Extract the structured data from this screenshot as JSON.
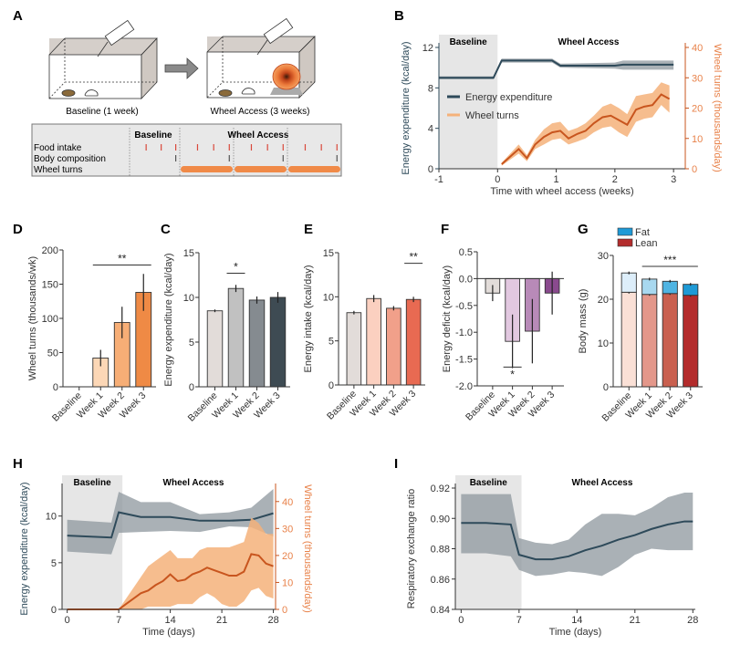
{
  "panel_letters": {
    "A": "A",
    "B": "B",
    "C": "C",
    "D": "D",
    "E": "E",
    "F": "F",
    "G": "G",
    "H": "H",
    "I": "I"
  },
  "colors": {
    "ee_line": "#2e4a5a",
    "ee_band": "#8e979e",
    "wheel_line": "#c8551e",
    "wheel_band": "#f5b27a",
    "wheel_axis": "#e8824a",
    "baseline_shade": "#e6e6e6",
    "food_tick": "#d9483b",
    "body_tick": "#555555",
    "wheel_bar": "#f08a48"
  },
  "panel_a": {
    "cage1_label": "Baseline (1 week)",
    "cage2_label": "Wheel Access (3 weeks)",
    "schedule": {
      "header_baseline": "Baseline",
      "header_wheel": "Wheel Access",
      "rows": [
        "Food intake",
        "Body composition",
        "Wheel turns"
      ]
    }
  },
  "chart_data": [
    {
      "id": "B",
      "type": "line",
      "title": "",
      "region_labels": [
        "Baseline",
        "Wheel Access"
      ],
      "xlabel": "Time with wheel access (weeks)",
      "ylabel": "Energy expenditure (kcal/day)",
      "y2label": "Wheel turns (thousands/day)",
      "xlim": [
        -1,
        3.2
      ],
      "ylim": [
        0,
        12
      ],
      "y2lim": [
        0,
        40
      ],
      "xticks": [
        -1,
        0,
        1,
        2,
        3
      ],
      "yticks": [
        0,
        4,
        8,
        12
      ],
      "y2ticks": [
        0,
        10,
        20,
        30,
        40
      ],
      "legend": [
        "Energy expenditure",
        "Wheel turns"
      ],
      "legend_position": "center-left",
      "series": [
        {
          "name": "Energy expenditure",
          "axis": "left",
          "x": [
            -1,
            -0.07,
            0.07,
            0.93,
            1.07,
            2.0,
            2.14,
            3.0
          ],
          "y": [
            9.0,
            9.0,
            10.7,
            10.7,
            10.2,
            10.2,
            10.3,
            10.3
          ],
          "lower": [
            8.85,
            8.85,
            10.5,
            10.5,
            10.0,
            9.9,
            9.8,
            9.8
          ],
          "upper": [
            9.15,
            9.15,
            10.9,
            10.9,
            10.4,
            10.5,
            10.7,
            10.7
          ]
        },
        {
          "name": "Wheel turns",
          "axis": "right",
          "x": [
            0.07,
            0.36,
            0.5,
            0.64,
            0.79,
            0.93,
            1.07,
            1.21,
            1.36,
            1.5,
            1.64,
            1.79,
            1.93,
            2.07,
            2.21,
            2.36,
            2.5,
            2.64,
            2.79,
            2.93
          ],
          "y": [
            1.5,
            6.5,
            3.5,
            8,
            10.5,
            12,
            12.5,
            10,
            11.5,
            12.5,
            15,
            17,
            17.5,
            16,
            14.5,
            19.5,
            20.5,
            21,
            24.5,
            23
          ],
          "lower": [
            1,
            5,
            2.5,
            6.5,
            8,
            9.5,
            10,
            8,
            9,
            10,
            12,
            13.5,
            14,
            12,
            10.5,
            15.5,
            16.5,
            17,
            21,
            18.5
          ],
          "upper": [
            2,
            8,
            4.5,
            9.5,
            13,
            15,
            15.5,
            12.5,
            13.5,
            15,
            17.5,
            20.5,
            21.5,
            20,
            18,
            24,
            24.5,
            25,
            28.5,
            27.5
          ]
        }
      ]
    },
    {
      "id": "D",
      "type": "bar",
      "categories": [
        "Baseline",
        "Week 1",
        "Week 2",
        "Week 3"
      ],
      "values": [
        0,
        42,
        94,
        138
      ],
      "errors": [
        0,
        12,
        23,
        27
      ],
      "colors": [
        "#ffffff",
        "#fcd7b6",
        "#f7ae76",
        "#ef8a45"
      ],
      "ylabel": "Wheel turns (thousands/wk)",
      "ylim": [
        0,
        200
      ],
      "yticks": [
        0,
        50,
        100,
        150,
        200
      ],
      "significance": {
        "label": "**",
        "from": 1,
        "to": 3,
        "y": 178
      }
    },
    {
      "id": "C",
      "type": "bar",
      "categories": [
        "Baseline",
        "Week 1",
        "Week 2",
        "Week 3"
      ],
      "values": [
        8.5,
        11.0,
        9.7,
        10.0
      ],
      "errors": [
        0.15,
        0.4,
        0.4,
        0.6
      ],
      "colors": [
        "#e2dcd9",
        "#c1c1c1",
        "#858b90",
        "#3e4b53"
      ],
      "ylabel": "Energy expenditure (kcal/day)",
      "ylim": [
        0,
        15
      ],
      "yticks": [
        0,
        5,
        10,
        15
      ],
      "significance": {
        "label": "*",
        "from": 1,
        "to": 1,
        "y": 12.7
      }
    },
    {
      "id": "E",
      "type": "bar",
      "categories": [
        "Baseline",
        "Week 1",
        "Week 2",
        "Week 3"
      ],
      "values": [
        8.2,
        9.8,
        8.7,
        9.7
      ],
      "errors": [
        0.2,
        0.4,
        0.25,
        0.3
      ],
      "colors": [
        "#e2dcd9",
        "#fbd0c0",
        "#f1a08a",
        "#e86a52"
      ],
      "ylabel": "Energy intake (kcal/day)",
      "ylim": [
        0,
        15
      ],
      "yticks": [
        0,
        5,
        10,
        15
      ],
      "significance": {
        "label": "**",
        "from": 3,
        "to": 3,
        "y": 13.8
      }
    },
    {
      "id": "F",
      "type": "bar",
      "categories": [
        "Baseline",
        "Week 1",
        "Week 2",
        "Week 3"
      ],
      "values": [
        -0.27,
        -1.17,
        -0.98,
        -0.27
      ],
      "errors": [
        0.15,
        0.5,
        0.6,
        0.4
      ],
      "colors": [
        "#e2dcd9",
        "#e2c8e0",
        "#b88ab8",
        "#8a4a8e"
      ],
      "ylabel": "Energy deficit (kcal/day)",
      "ylim": [
        -2.0,
        0.5
      ],
      "yticks": [
        -2.0,
        -1.5,
        -1.0,
        -0.5,
        0.0,
        0.5
      ],
      "ytick_labels": [
        "-2.0",
        "-1.5",
        "-1.0",
        "-0.5",
        "0.0",
        "0.5"
      ],
      "significance": {
        "label": "*",
        "from": 1,
        "to": 1,
        "y": -1.65
      }
    },
    {
      "id": "G",
      "type": "bar",
      "stacked": true,
      "categories": [
        "Baseline",
        "Week 1",
        "Week 2",
        "Week 3"
      ],
      "series": [
        {
          "name": "Lean",
          "values": [
            21.6,
            21.1,
            21.3,
            20.9
          ],
          "colors": [
            "#fae0d6",
            "#e3978a",
            "#c9604f",
            "#b32c2c"
          ]
        },
        {
          "name": "Fat",
          "values": [
            4.4,
            3.5,
            2.8,
            2.5
          ],
          "colors": [
            "#ddeefa",
            "#a8d8ef",
            "#4fb4e2",
            "#1e9ad6"
          ]
        }
      ],
      "ylabel": "Body mass (g)",
      "ylim": [
        0,
        30
      ],
      "yticks": [
        0,
        10,
        20,
        30
      ],
      "legend": [
        "Fat",
        "Lean"
      ],
      "legend_colors": [
        "#1e9ad6",
        "#b32c2c"
      ],
      "legend_position": "top-left",
      "significance": {
        "label": "***",
        "from": 1,
        "to": 3,
        "y": 27.5
      }
    },
    {
      "id": "H",
      "type": "line",
      "region_labels": [
        "Baseline",
        "Wheel Access"
      ],
      "xlabel": "Time (days)",
      "ylabel": "Energy expenditure (kcal/day)",
      "y2label": "Wheel turns (thousands/day)",
      "xlim": [
        -0.7,
        28.3
      ],
      "ylim": [
        0,
        13
      ],
      "y2lim": [
        0,
        45
      ],
      "xticks": [
        0,
        7,
        14,
        21,
        28
      ],
      "yticks": [
        0,
        5,
        10
      ],
      "y2ticks": [
        0,
        10,
        20,
        30,
        40
      ],
      "series": [
        {
          "name": "Energy expenditure",
          "axis": "left",
          "x": [
            0,
            6,
            7,
            10,
            14,
            18,
            22,
            25,
            28
          ],
          "y": [
            7.9,
            7.7,
            10.4,
            9.9,
            9.9,
            9.5,
            9.5,
            9.6,
            10.3
          ],
          "lower": [
            6.2,
            5.9,
            8.2,
            8.3,
            8.4,
            8.3,
            8.9,
            8.8,
            7.8
          ],
          "upper": [
            9.6,
            9.3,
            12.6,
            11.5,
            11.5,
            10.2,
            10.4,
            10.9,
            12.9
          ]
        },
        {
          "name": "Wheel turns",
          "axis": "right",
          "x": [
            0,
            7,
            8,
            9,
            10,
            11,
            12,
            13,
            14,
            15,
            16,
            17,
            18,
            19,
            20,
            21,
            22,
            23,
            24,
            25,
            26,
            27,
            28
          ],
          "y": [
            0,
            0,
            2,
            4,
            6,
            7,
            9,
            10.5,
            13,
            10.5,
            11,
            13,
            14,
            15.5,
            14.5,
            13.5,
            12.5,
            12.5,
            14,
            20.5,
            20,
            17,
            16
          ],
          "lower": [
            0,
            0,
            0,
            0,
            0,
            1,
            1,
            1,
            1,
            2,
            2,
            2,
            4.5,
            6,
            4.5,
            2,
            1,
            1,
            3,
            7,
            8,
            5,
            4
          ],
          "upper": [
            0,
            0,
            4,
            8,
            12,
            16,
            18,
            20,
            22,
            19,
            19,
            19,
            22,
            23,
            23,
            23,
            23,
            24,
            25,
            34,
            32,
            28,
            28
          ]
        }
      ]
    },
    {
      "id": "I",
      "type": "line",
      "region_labels": [
        "Baseline",
        "Wheel Access"
      ],
      "xlabel": "Time (days)",
      "ylabel": "Respiratory exchange ratio",
      "xlim": [
        -0.7,
        28.3
      ],
      "ylim": [
        0.84,
        0.92
      ],
      "xticks": [
        0,
        7,
        14,
        21,
        28
      ],
      "yticks": [
        0.84,
        0.86,
        0.88,
        0.9,
        0.92
      ],
      "ytick_labels": [
        "0.84",
        "0.86",
        "0.88",
        "0.90",
        "0.92"
      ],
      "series": [
        {
          "name": "Respiratory exchange ratio",
          "x": [
            0,
            3,
            6,
            7,
            9,
            11,
            13,
            15,
            17,
            19,
            21,
            23,
            25,
            27,
            28
          ],
          "y": [
            0.897,
            0.897,
            0.896,
            0.876,
            0.873,
            0.873,
            0.875,
            0.879,
            0.882,
            0.886,
            0.889,
            0.893,
            0.896,
            0.898,
            0.898
          ],
          "lower": [
            0.877,
            0.877,
            0.875,
            0.866,
            0.862,
            0.863,
            0.865,
            0.864,
            0.862,
            0.868,
            0.876,
            0.88,
            0.879,
            0.879,
            0.879
          ],
          "upper": [
            0.916,
            0.916,
            0.916,
            0.887,
            0.884,
            0.883,
            0.886,
            0.896,
            0.903,
            0.903,
            0.902,
            0.907,
            0.914,
            0.917,
            0.917
          ]
        }
      ]
    }
  ]
}
